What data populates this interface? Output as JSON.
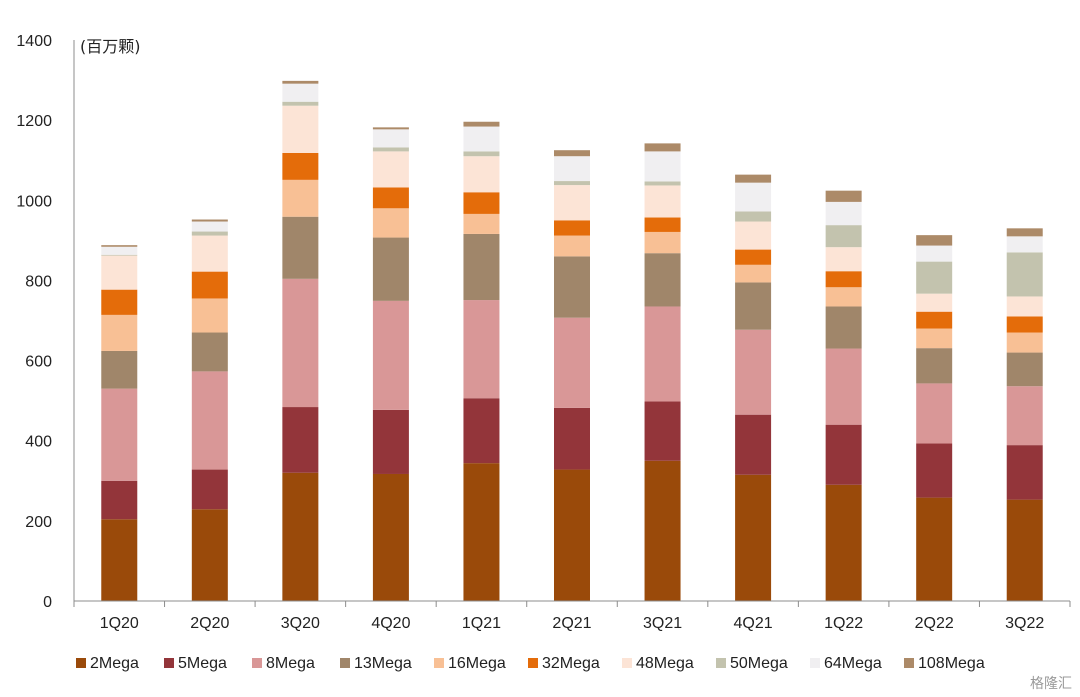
{
  "chart_data": {
    "type": "bar",
    "stacked": true,
    "unit_label": "(百万颗)",
    "categories": [
      "1Q20",
      "2Q20",
      "3Q20",
      "4Q20",
      "1Q21",
      "2Q21",
      "3Q21",
      "4Q21",
      "1Q22",
      "2Q22",
      "3Q22"
    ],
    "ylim": [
      0,
      1400
    ],
    "yticks": [
      0,
      200,
      400,
      600,
      800,
      1000,
      1200,
      1400
    ],
    "legend_position": "bottom",
    "series": [
      {
        "name": "2Mega",
        "color": "#9A4A0A",
        "values": [
          204,
          229,
          320,
          317,
          344,
          328,
          350,
          315,
          290,
          258,
          253
        ]
      },
      {
        "name": "5Mega",
        "color": "#93353A",
        "values": [
          96,
          99,
          164,
          160,
          162,
          154,
          148,
          150,
          150,
          135,
          136
        ]
      },
      {
        "name": "8Mega",
        "color": "#D99797",
        "values": [
          230,
          245,
          320,
          272,
          245,
          225,
          237,
          212,
          190,
          150,
          147
        ]
      },
      {
        "name": "13Mega",
        "color": "#A0866A",
        "values": [
          94,
          97,
          155,
          158,
          165,
          153,
          133,
          118,
          105,
          88,
          84
        ]
      },
      {
        "name": "16Mega",
        "color": "#F8C095",
        "values": [
          90,
          85,
          92,
          73,
          50,
          52,
          53,
          44,
          48,
          49,
          50
        ]
      },
      {
        "name": "32Mega",
        "color": "#E46C0A",
        "values": [
          63,
          67,
          67,
          52,
          54,
          38,
          36,
          38,
          40,
          42,
          40
        ]
      },
      {
        "name": "48Mega",
        "color": "#FCE4D6",
        "values": [
          85,
          90,
          118,
          90,
          90,
          88,
          80,
          70,
          60,
          45,
          50
        ]
      },
      {
        "name": "50Mega",
        "color": "#C3C3AE",
        "values": [
          2,
          10,
          10,
          10,
          12,
          10,
          10,
          25,
          55,
          80,
          110
        ]
      },
      {
        "name": "64Mega",
        "color": "#F0EFF1",
        "values": [
          20,
          25,
          45,
          45,
          62,
          62,
          75,
          72,
          58,
          40,
          40
        ]
      },
      {
        "name": "108Mega",
        "color": "#AC8A68",
        "values": [
          4,
          5,
          7,
          5,
          12,
          15,
          20,
          20,
          28,
          26,
          20
        ]
      }
    ]
  }
}
